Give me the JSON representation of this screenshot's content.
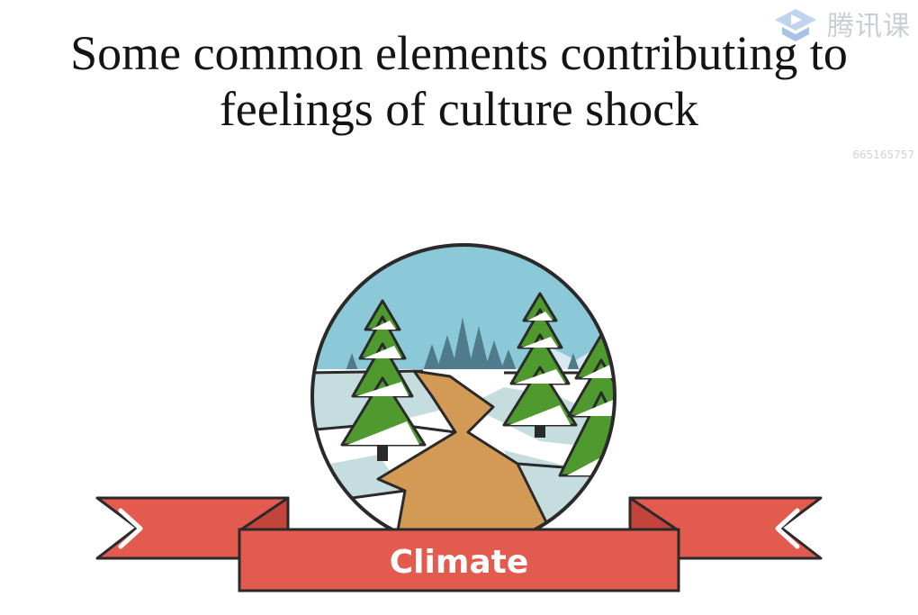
{
  "slide": {
    "title": "Some common elements contributing to feelings of culture shock",
    "banner_label": "Climate"
  },
  "watermark": {
    "brand_text": "腾讯课",
    "id_text": "665165757"
  },
  "colors": {
    "banner_red": "#e35a4f",
    "banner_dark": "#c4433a",
    "sky": "#8cc9d8",
    "tree_green": "#4f9a2f",
    "path_tan": "#d29a55",
    "snow": "#ffffff",
    "ice": "#c6dde0"
  },
  "icons": {
    "brand_logo": "tencent-classroom-logo-icon",
    "scene": "winter-forest-icon"
  }
}
